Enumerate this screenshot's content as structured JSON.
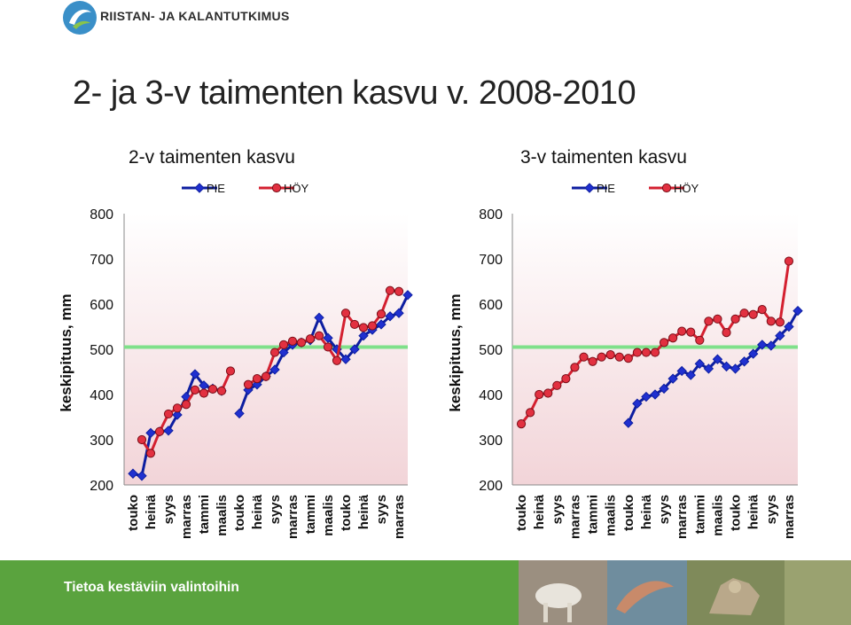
{
  "header": {
    "org_name": "RIISTAN- JA KALANTUTKIMUS",
    "main_title": "2- ja 3-v taimenten kasvu v. 2008-2010"
  },
  "footer": {
    "tagline": "Tietoa kestäviin valintoihin",
    "color": "#5aa33e"
  },
  "chart_data": [
    {
      "type": "line",
      "title": "2-v taimenten kasvu",
      "ylabel": "keskipituus, mm",
      "xlabel": "",
      "ylim": [
        200,
        800
      ],
      "yticks": [
        200,
        300,
        400,
        500,
        600,
        700,
        800
      ],
      "grid": false,
      "legend": "top",
      "reference_line": {
        "value": 505,
        "color": "#7fe08a"
      },
      "categories": [
        "touko",
        "heinä",
        "syys",
        "marras",
        "tammi",
        "maalis",
        "touko",
        "heinä",
        "syys",
        "marras",
        "tammi",
        "maalis",
        "touko",
        "heinä",
        "syys",
        "marras"
      ],
      "series": [
        {
          "name": "PIE",
          "color": "#0d1ea0",
          "marker": "diamond",
          "segments": [
            {
              "x": [
                0,
                0.5,
                1,
                1.5,
                2,
                2.5,
                3,
                3.5,
                4,
                4.5,
                5
              ],
              "y": [
                225,
                220,
                315,
                318,
                320,
                355,
                395,
                445,
                420,
                413,
                408
              ]
            },
            {
              "x": [
                6,
                6.5,
                7,
                7.5,
                8,
                8.5,
                9,
                9.5,
                10,
                10.5,
                11,
                11.5,
                12,
                12.5,
                13,
                13.5,
                14,
                14.5,
                15,
                15.5
              ],
              "y": [
                358,
                410,
                422,
                440,
                455,
                493,
                510,
                515,
                520,
                570,
                525,
                500,
                478,
                500,
                530,
                543,
                555,
                573,
                580,
                620
              ]
            }
          ]
        },
        {
          "name": "HÖY",
          "color": "#d42030",
          "marker": "circle",
          "segments": [
            {
              "x": [
                0.5,
                1,
                1.5,
                2,
                2.5,
                3,
                3.5,
                4,
                4.5,
                5,
                5.5
              ],
              "y": [
                300,
                270,
                318,
                357,
                370,
                378,
                410,
                403,
                412,
                408,
                452
              ]
            },
            {
              "x": [
                6.5,
                7,
                7.5,
                8,
                8.5,
                9,
                9.5,
                10,
                10.5,
                11,
                11.5,
                12,
                12.5,
                13,
                13.5,
                14,
                14.5,
                15
              ],
              "y": [
                422,
                435,
                440,
                493,
                510,
                518,
                515,
                523,
                530,
                505,
                475,
                580,
                555,
                548,
                552,
                578,
                630,
                628
              ]
            }
          ]
        }
      ]
    },
    {
      "type": "line",
      "title": "3-v taimenten kasvu",
      "ylabel": "keskipituus, mm",
      "xlabel": "",
      "ylim": [
        200,
        800
      ],
      "yticks": [
        200,
        300,
        400,
        500,
        600,
        700,
        800
      ],
      "grid": false,
      "legend": "top",
      "reference_line": {
        "value": 505,
        "color": "#7fe08a"
      },
      "categories": [
        "touko",
        "heinä",
        "syys",
        "marras",
        "tammi",
        "maalis",
        "touko",
        "heinä",
        "syys",
        "marras",
        "tammi",
        "maalis",
        "touko",
        "heinä",
        "syys",
        "marras"
      ],
      "series": [
        {
          "name": "PIE",
          "color": "#0d1ea0",
          "marker": "diamond",
          "segments": [
            {
              "x": [
                6,
                6.5,
                7,
                7.5,
                8,
                8.5,
                9,
                9.5,
                10,
                10.5,
                11,
                11.5,
                12,
                12.5,
                13,
                13.5,
                14,
                14.5,
                15,
                15.5
              ],
              "y": [
                337,
                380,
                395,
                400,
                413,
                435,
                452,
                443,
                468,
                457,
                478,
                462,
                457,
                473,
                490,
                510,
                508,
                530,
                550,
                585
              ]
            }
          ]
        },
        {
          "name": "HÖY",
          "color": "#d42030",
          "marker": "circle",
          "segments": [
            {
              "x": [
                0,
                0.5,
                1,
                1.5,
                2,
                2.5,
                3,
                3.5,
                4,
                4.5,
                5,
                5.5,
                6,
                6.5,
                7,
                7.5,
                8,
                8.5,
                9,
                9.5,
                10,
                10.5,
                11,
                11.5,
                12,
                12.5,
                13,
                13.5,
                14,
                14.5,
                15
              ],
              "y": [
                335,
                360,
                400,
                403,
                420,
                435,
                460,
                483,
                473,
                483,
                488,
                483,
                480,
                493,
                493,
                493,
                515,
                525,
                540,
                538,
                520,
                562,
                567,
                537,
                567,
                580,
                577,
                588,
                562,
                560,
                695
              ]
            }
          ]
        }
      ]
    }
  ]
}
